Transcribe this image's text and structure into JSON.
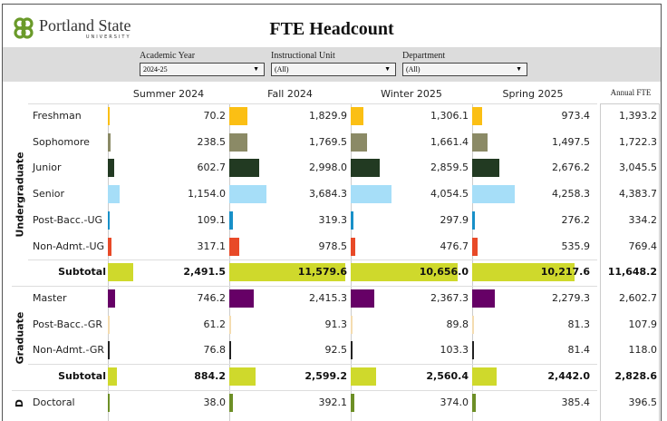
{
  "header": {
    "logo_name": "Portland State",
    "logo_sub": "UNIVERSITY",
    "title": "FTE  Headcount"
  },
  "filters": [
    {
      "label": "Academic Year",
      "value": "2024-25"
    },
    {
      "label": "Instructional Unit",
      "value": "(All)"
    },
    {
      "label": "Department",
      "value": "(All)"
    }
  ],
  "columns": [
    "Summer 2024",
    "Fall 2024",
    "Winter 2025",
    "Spring 2025"
  ],
  "annual_header": "Annual FTE",
  "colors": {
    "Freshman": "#fbbf14",
    "Sophomore": "#8b8a66",
    "Junior": "#223a22",
    "Senior": "#a6def8",
    "Post-Bacc.-UG": "#1890c8",
    "Non-Admt.-UG": "#e84a28",
    "Subtotal": "#cfd92c",
    "Master": "#660066",
    "Post-Bacc.-GR": "#f4dcb0",
    "Non-Admt.-GR": "#222222",
    "Doctoral": "#6d8f26"
  },
  "groups": [
    {
      "name": "Undergraduate",
      "rows": [
        {
          "label": "Freshman",
          "values": [
            "70.2",
            "1,829.9",
            "1,306.1",
            "973.4"
          ],
          "annual": "1,393.2"
        },
        {
          "label": "Sophomore",
          "values": [
            "238.5",
            "1,769.5",
            "1,661.4",
            "1,497.5"
          ],
          "annual": "1,722.3"
        },
        {
          "label": "Junior",
          "values": [
            "602.7",
            "2,998.0",
            "2,859.5",
            "2,676.2"
          ],
          "annual": "3,045.5"
        },
        {
          "label": "Senior",
          "values": [
            "1,154.0",
            "3,684.3",
            "4,054.5",
            "4,258.3"
          ],
          "annual": "4,383.7"
        },
        {
          "label": "Post-Bacc.-UG",
          "values": [
            "109.1",
            "319.3",
            "297.9",
            "276.2"
          ],
          "annual": "334.2"
        },
        {
          "label": "Non-Admt.-UG",
          "values": [
            "317.1",
            "978.5",
            "476.7",
            "535.9"
          ],
          "annual": "769.4"
        },
        {
          "label": "Subtotal",
          "subtotal": true,
          "values": [
            "2,491.5",
            "11,579.6",
            "10,656.0",
            "10,217.6"
          ],
          "annual": "11,648.2"
        }
      ]
    },
    {
      "name": "Graduate",
      "rows": [
        {
          "label": "Master",
          "values": [
            "746.2",
            "2,415.3",
            "2,367.3",
            "2,279.3"
          ],
          "annual": "2,602.7"
        },
        {
          "label": "Post-Bacc.-GR",
          "values": [
            "61.2",
            "91.3",
            "89.8",
            "81.3"
          ],
          "annual": "107.9"
        },
        {
          "label": "Non-Admt.-GR",
          "values": [
            "76.8",
            "92.5",
            "103.3",
            "81.4"
          ],
          "annual": "118.0"
        },
        {
          "label": "Subtotal",
          "subtotal": true,
          "values": [
            "884.2",
            "2,599.2",
            "2,560.4",
            "2,442.0"
          ],
          "annual": "2,828.6"
        }
      ]
    },
    {
      "name": "D",
      "rows": [
        {
          "label": "Doctoral",
          "values": [
            "38.0",
            "392.1",
            "374.0",
            "385.4"
          ],
          "annual": "396.5"
        }
      ]
    }
  ]
}
